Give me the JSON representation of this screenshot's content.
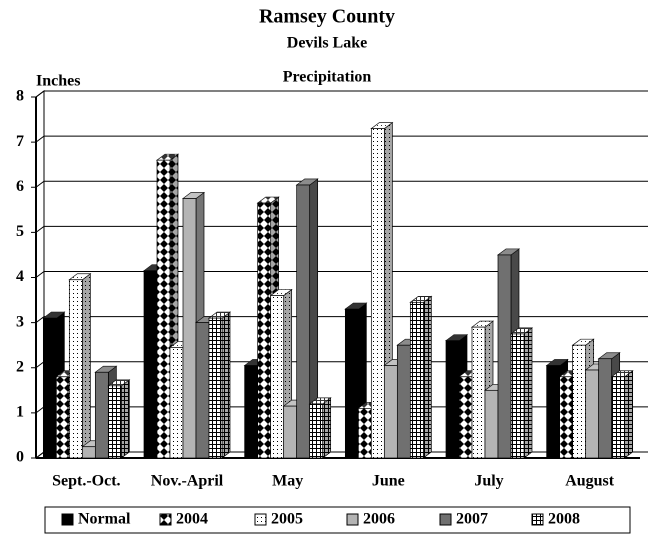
{
  "chart_data": {
    "type": "bar3d",
    "title": "Ramsey County",
    "subtitle": "Devils Lake",
    "chart_label": "Precipitation",
    "y_label": "Inches",
    "categories": [
      "Sept.-Oct.",
      "Nov.-April",
      "May",
      "June",
      "July",
      "August"
    ],
    "series": [
      {
        "name": "Normal",
        "color": "#000000",
        "values": [
          3.1,
          4.15,
          2.05,
          3.3,
          2.6,
          2.05
        ]
      },
      {
        "name": "2004",
        "color": "#ffffff",
        "values": [
          1.8,
          6.6,
          5.65,
          1.1,
          1.8,
          1.8
        ]
      },
      {
        "name": "2005",
        "color": "#ffffff",
        "values": [
          3.95,
          2.45,
          3.6,
          7.3,
          2.9,
          2.5
        ]
      },
      {
        "name": "2006",
        "color": "#b4b4b4",
        "values": [
          0.25,
          5.75,
          1.15,
          2.05,
          1.5,
          1.95
        ]
      },
      {
        "name": "2007",
        "color": "#707070",
        "values": [
          1.9,
          3.0,
          6.05,
          2.5,
          4.5,
          2.2
        ]
      },
      {
        "name": "2008",
        "color": "#ffffff",
        "values": [
          1.6,
          3.1,
          1.2,
          3.45,
          2.75,
          1.8
        ]
      }
    ],
    "ylim": [
      0,
      8
    ],
    "yticks": [
      0,
      1,
      2,
      3,
      4,
      5,
      6,
      7,
      8
    ],
    "grid": true
  }
}
